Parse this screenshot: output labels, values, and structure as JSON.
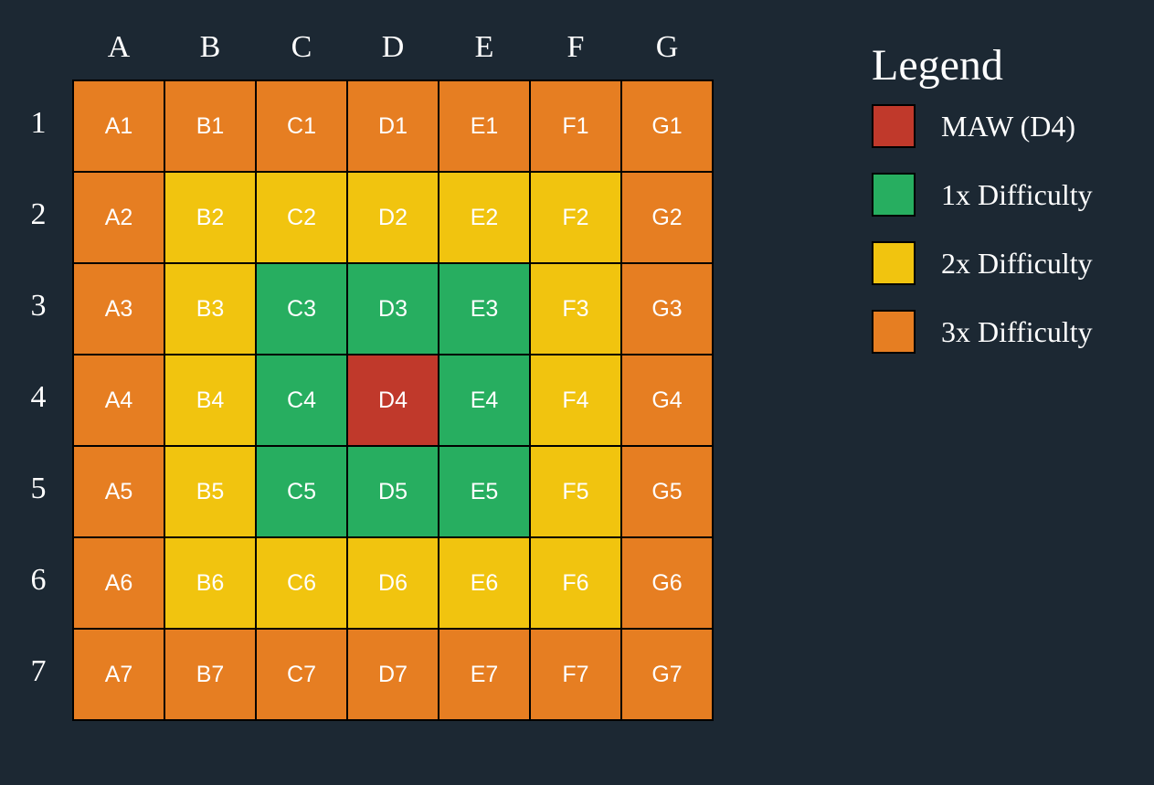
{
  "columns": [
    "A",
    "B",
    "C",
    "D",
    "E",
    "F",
    "G"
  ],
  "rows": [
    "1",
    "2",
    "3",
    "4",
    "5",
    "6",
    "7"
  ],
  "colors": {
    "maw": "#c0392b",
    "1x": "#27ae60",
    "2x": "#f1c40f",
    "3x": "#e67e22"
  },
  "grid": [
    [
      "3x",
      "3x",
      "3x",
      "3x",
      "3x",
      "3x",
      "3x"
    ],
    [
      "3x",
      "2x",
      "2x",
      "2x",
      "2x",
      "2x",
      "3x"
    ],
    [
      "3x",
      "2x",
      "1x",
      "1x",
      "1x",
      "2x",
      "3x"
    ],
    [
      "3x",
      "2x",
      "1x",
      "maw",
      "1x",
      "2x",
      "3x"
    ],
    [
      "3x",
      "2x",
      "1x",
      "1x",
      "1x",
      "2x",
      "3x"
    ],
    [
      "3x",
      "2x",
      "2x",
      "2x",
      "2x",
      "2x",
      "3x"
    ],
    [
      "3x",
      "3x",
      "3x",
      "3x",
      "3x",
      "3x",
      "3x"
    ]
  ],
  "legend": {
    "title": "Legend",
    "items": [
      {
        "key": "maw",
        "label": "MAW (D4)"
      },
      {
        "key": "1x",
        "label": "1x Difficulty"
      },
      {
        "key": "2x",
        "label": "2x Difficulty"
      },
      {
        "key": "3x",
        "label": "3x Difficulty"
      }
    ]
  }
}
